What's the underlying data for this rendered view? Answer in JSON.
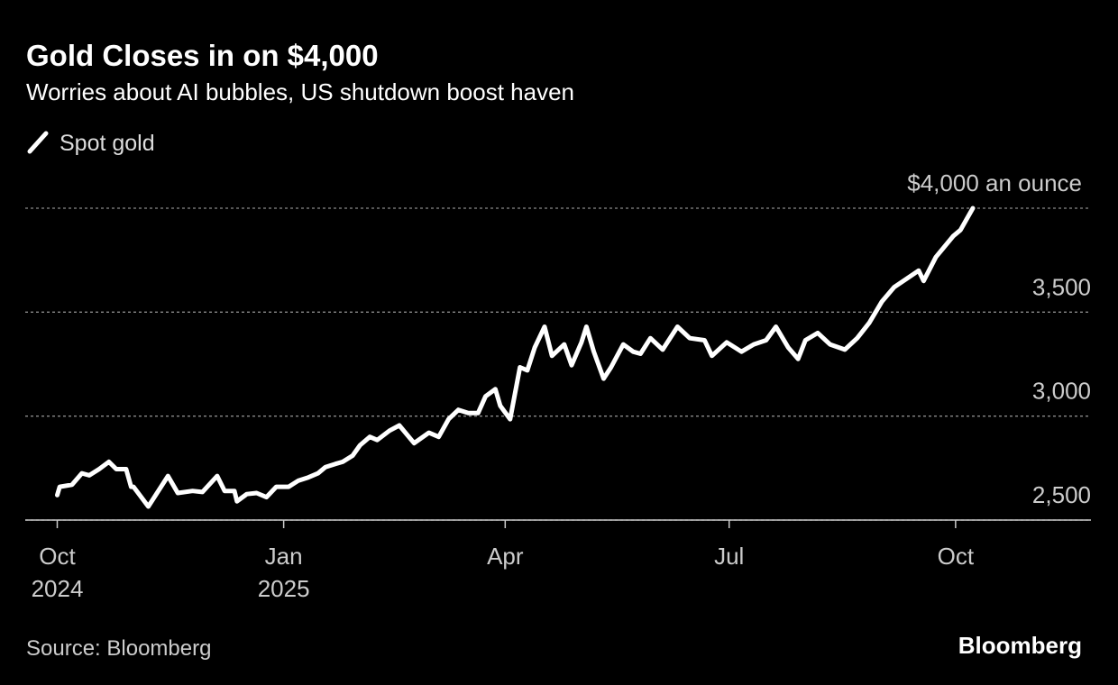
{
  "chart_data": {
    "type": "line",
    "title": "Gold Closes in on $4,000",
    "subtitle": "Worries about AI bubbles, US shutdown boost haven",
    "source": "Source: Bloomberg",
    "brand": "Bloomberg",
    "x": [
      "2024-10-01",
      "2024-10-02",
      "2024-10-07",
      "2024-10-11",
      "2024-10-14",
      "2024-10-18",
      "2024-10-22",
      "2024-10-25",
      "2024-10-29",
      "2024-10-31",
      "2024-11-01",
      "2024-11-07",
      "2024-11-15",
      "2024-11-19",
      "2024-11-25",
      "2024-11-29",
      "2024-12-05",
      "2024-12-08",
      "2024-12-12",
      "2024-12-13",
      "2024-12-17",
      "2024-12-21",
      "2024-12-25",
      "2024-12-29",
      "2025-01-03",
      "2025-01-07",
      "2025-01-11",
      "2025-01-15",
      "2025-01-18",
      "2025-01-22",
      "2025-01-25",
      "2025-01-29",
      "2025-02-01",
      "2025-02-05",
      "2025-02-08",
      "2025-02-13",
      "2025-02-17",
      "2025-02-23",
      "2025-03-01",
      "2025-03-05",
      "2025-03-09",
      "2025-03-13",
      "2025-03-17",
      "2025-03-21",
      "2025-03-24",
      "2025-03-28",
      "2025-03-30",
      "2025-04-03",
      "2025-04-07",
      "2025-04-10",
      "2025-04-13",
      "2025-04-17",
      "2025-04-20",
      "2025-04-25",
      "2025-04-28",
      "2025-05-02",
      "2025-05-04",
      "2025-05-07",
      "2025-05-11",
      "2025-05-14",
      "2025-05-19",
      "2025-05-23",
      "2025-05-26",
      "2025-05-30",
      "2025-06-04",
      "2025-06-10",
      "2025-06-15",
      "2025-06-21",
      "2025-06-24",
      "2025-06-30",
      "2025-07-06",
      "2025-07-11",
      "2025-07-16",
      "2025-07-20",
      "2025-07-25",
      "2025-07-29",
      "2025-08-01",
      "2025-08-06",
      "2025-08-11",
      "2025-08-17",
      "2025-08-22",
      "2025-08-27",
      "2025-09-01",
      "2025-09-06",
      "2025-09-11",
      "2025-09-16",
      "2025-09-18",
      "2025-09-23",
      "2025-09-30",
      "2025-10-03",
      "2025-10-08"
    ],
    "series": [
      {
        "name": "Spot gold",
        "color": "#ffffff",
        "values": [
          2620,
          2660,
          2670,
          2725,
          2715,
          2745,
          2780,
          2745,
          2745,
          2660,
          2660,
          2565,
          2712,
          2630,
          2640,
          2635,
          2712,
          2640,
          2640,
          2590,
          2625,
          2630,
          2610,
          2660,
          2660,
          2690,
          2705,
          2725,
          2755,
          2770,
          2780,
          2810,
          2860,
          2900,
          2885,
          2930,
          2955,
          2870,
          2920,
          2900,
          2985,
          3030,
          3015,
          3015,
          3095,
          3130,
          3050,
          2985,
          3235,
          3220,
          3330,
          3430,
          3290,
          3345,
          3245,
          3355,
          3430,
          3310,
          3180,
          3235,
          3345,
          3310,
          3300,
          3375,
          3320,
          3430,
          3375,
          3365,
          3290,
          3355,
          3310,
          3345,
          3365,
          3430,
          3330,
          3275,
          3365,
          3400,
          3345,
          3320,
          3375,
          3450,
          3550,
          3620,
          3660,
          3700,
          3650,
          3765,
          3865,
          3895,
          4000
        ]
      }
    ],
    "xlim": [
      "2024-09-18",
      "2025-11-25"
    ],
    "xticks": [
      {
        "value": "2024-10-01",
        "label": "Oct 2024"
      },
      {
        "value": "2025-01-01",
        "label": "Jan 2025"
      },
      {
        "value": "2025-04-01",
        "label": "Apr"
      },
      {
        "value": "2025-07-01",
        "label": "Jul"
      },
      {
        "value": "2025-10-01",
        "label": "Oct"
      }
    ],
    "ylim": [
      2500,
      4000
    ],
    "yticks": [
      {
        "value": 2500,
        "label": "2,500"
      },
      {
        "value": 3000,
        "label": "3,000"
      },
      {
        "value": 3500,
        "label": "3,500"
      },
      {
        "value": 4000,
        "label": "$4,000 an ounce"
      }
    ],
    "grid": true
  }
}
